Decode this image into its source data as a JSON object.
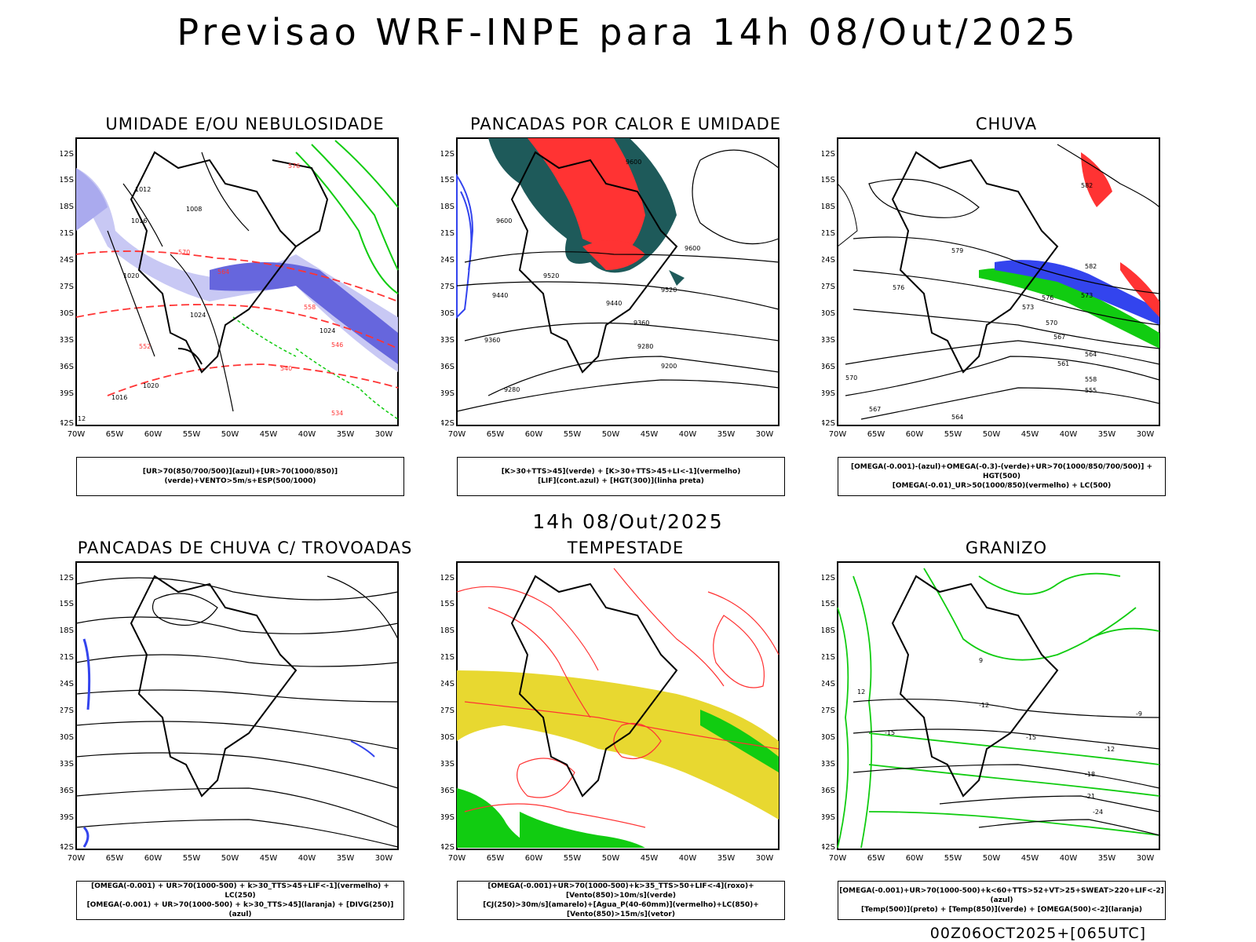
{
  "title": "Previsao WRF-INPE  para 14h 08/Out/2025",
  "mid_title": "14h 08/Out/2025",
  "footer": "00Z06OCT2025+[065UTC]",
  "axes": {
    "lat_ticks": [
      "12S",
      "15S",
      "18S",
      "21S",
      "24S",
      "27S",
      "30S",
      "33S",
      "36S",
      "39S",
      "42S"
    ],
    "lon_ticks": [
      "70W",
      "65W",
      "60W",
      "55W",
      "50W",
      "45W",
      "40W",
      "35W",
      "30W"
    ]
  },
  "panels": [
    {
      "title": "UMIDADE E/OU NEBULOSIDADE",
      "legend": [
        "[UR>70(850/700/500)](azul)+[UR>70(1000/850)](verde)+VENTO>5m/s+ESP(500/1000)"
      ],
      "labels": [
        "1012",
        "1016",
        "1008",
        "1020",
        "1024",
        "1020",
        "1016",
        "1024",
        "576",
        "570",
        "564",
        "558",
        "552",
        "546",
        "540",
        "534",
        "12"
      ]
    },
    {
      "title": "PANCADAS POR CALOR E UMIDADE",
      "legend": [
        "[K>30+TTS>45](verde) + [K>30+TTS>45+LI<-1](vermelho)",
        "[LIF](cont.azul) + [HGT(300)](linha preta)"
      ],
      "labels": [
        "9600",
        "9520",
        "9440",
        "9360",
        "9280",
        "9200",
        "9360",
        "9280",
        "9600",
        "9520",
        "9440",
        "9600"
      ]
    },
    {
      "title": "CHUVA",
      "legend": [
        "[OMEGA(-0.001)-(azul)+OMEGA(-0.3)-(verde)+UR>70(1000/850/700/500)] + HGT(500)",
        "[OMEGA(-0.01)_UR>50(1000/850)(vermelho) + LC(500)"
      ],
      "labels": [
        "582",
        "576",
        "573",
        "570",
        "567",
        "564",
        "561",
        "558",
        "555",
        "582",
        "579",
        "576",
        "570",
        "573",
        "567",
        "564"
      ]
    },
    {
      "title": "PANCADAS DE CHUVA C/ TROVOADAS",
      "legend": [
        "[OMEGA(-0.001) + UR>70(1000-500) + k>30_TTS>45+LIF<-1](vermelho) + LC(250)",
        "[OMEGA(-0.001) + UR>70(1000-500) + k>30_TTS>45](laranja) + [DIVG(250)](azul)"
      ],
      "labels": []
    },
    {
      "title": "TEMPESTADE",
      "legend": [
        "[OMEGA(-0.001)+UR>70(1000-500)+k>35_TTS>50+LIF<-4](roxo)+[Vento(850)>10m/s](verde)",
        "[CJ(250)>30m/s](amarelo)+[Agua_P(40-60mm)](vermelho)+LC(850)+[Vento(850)>15m/s](vetor)"
      ],
      "labels": []
    },
    {
      "title": "GRANIZO",
      "legend": [
        "[OMEGA(-0.001)+UR>70(1000-500)+k<60+TTS>52+VT>25+SWEAT>220+LIF<-2](azul)",
        "[Temp(500)](preto) + [Temp(850)](verde) + [OMEGA(500)<-2](laranja)"
      ],
      "labels": [
        "-12",
        "-15",
        "-18",
        "-21",
        "-24",
        "-9",
        "-12",
        "-15",
        "12",
        "9"
      ]
    }
  ],
  "colors": {
    "blue": "#3344ee",
    "green": "#11cc11",
    "red": "#ff3333",
    "orange": "#ff8800",
    "yellow": "#e8d830",
    "teal": "#1e5a5a",
    "lavender": "#9999ee"
  }
}
